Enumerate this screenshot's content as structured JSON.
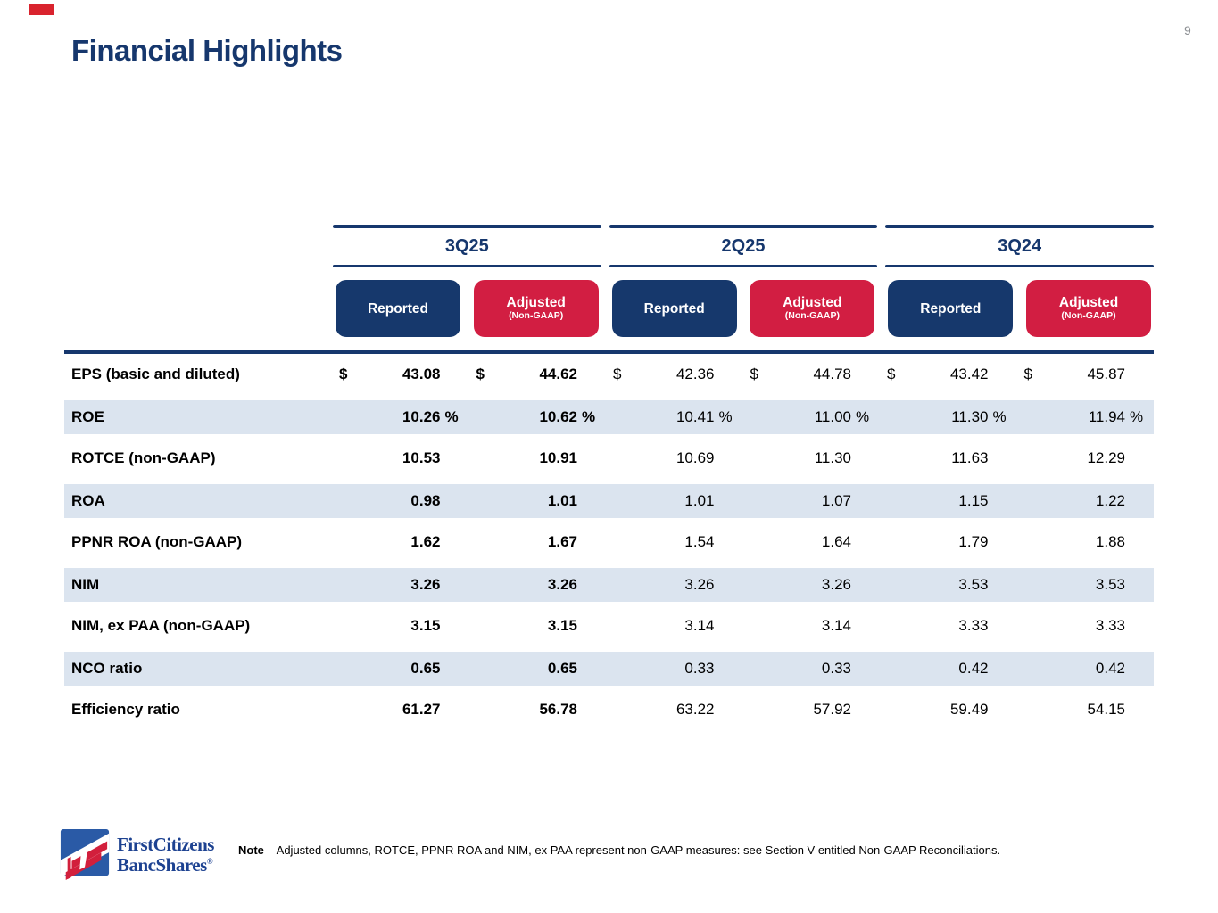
{
  "page": {
    "number": "9"
  },
  "title": "Financial Highlights",
  "colors": {
    "navy": "#16376d",
    "badge_navy": "#16386c",
    "badge_red": "#d21e42",
    "row_shade": "#dbe4ef",
    "corner_red": "#d9232e",
    "logo_blue": "#2a5aa6",
    "logo_red": "#d21f3c",
    "logo_text_blue": "#1d4291"
  },
  "header": {
    "groups": [
      {
        "label": "3Q25"
      },
      {
        "label": "2Q25"
      },
      {
        "label": "3Q24"
      }
    ],
    "badges": {
      "reported": "Reported",
      "adjusted": "Adjusted",
      "adjusted_sub": "(Non-GAAP)"
    }
  },
  "table": {
    "columns": [
      "3Q25 Reported",
      "3Q25 Adjusted (Non-GAAP)",
      "2Q25 Reported",
      "2Q25 Adjusted (Non-GAAP)",
      "3Q24 Reported",
      "3Q24 Adjusted (Non-GAAP)"
    ],
    "rows": [
      {
        "label": "EPS (basic and diluted)",
        "dollar": true,
        "percent": false,
        "shaded": false,
        "values": [
          "43.08",
          "44.62",
          "42.36",
          "44.78",
          "43.42",
          "45.87"
        ]
      },
      {
        "label": "ROE",
        "dollar": false,
        "percent": true,
        "shaded": true,
        "values": [
          "10.26",
          "10.62",
          "10.41",
          "11.00",
          "11.30",
          "11.94"
        ]
      },
      {
        "label": "ROTCE (non-GAAP)",
        "dollar": false,
        "percent": false,
        "shaded": false,
        "values": [
          "10.53",
          "10.91",
          "10.69",
          "11.30",
          "11.63",
          "12.29"
        ]
      },
      {
        "label": "ROA",
        "dollar": false,
        "percent": false,
        "shaded": true,
        "values": [
          "0.98",
          "1.01",
          "1.01",
          "1.07",
          "1.15",
          "1.22"
        ]
      },
      {
        "label": "PPNR ROA (non-GAAP)",
        "dollar": false,
        "percent": false,
        "shaded": false,
        "values": [
          "1.62",
          "1.67",
          "1.54",
          "1.64",
          "1.79",
          "1.88"
        ]
      },
      {
        "label": "NIM",
        "dollar": false,
        "percent": false,
        "shaded": true,
        "values": [
          "3.26",
          "3.26",
          "3.26",
          "3.26",
          "3.53",
          "3.53"
        ]
      },
      {
        "label": "NIM, ex PAA (non-GAAP)",
        "dollar": false,
        "percent": false,
        "shaded": false,
        "values": [
          "3.15",
          "3.15",
          "3.14",
          "3.14",
          "3.33",
          "3.33"
        ]
      },
      {
        "label": "NCO ratio",
        "dollar": false,
        "percent": false,
        "shaded": true,
        "values": [
          "0.65",
          "0.65",
          "0.33",
          "0.33",
          "0.42",
          "0.42"
        ]
      },
      {
        "label": "Efficiency ratio",
        "dollar": false,
        "percent": false,
        "shaded": false,
        "values": [
          "61.27",
          "56.78",
          "63.22",
          "57.92",
          "59.49",
          "54.15"
        ]
      }
    ]
  },
  "footer": {
    "logo_line1": "FirstCitizens",
    "logo_line2": "BancShares",
    "logo_reg": "®",
    "note_label": "Note",
    "note_dash": "–",
    "note_text": "Adjusted columns, ROTCE, PPNR ROA and NIM, ex PAA represent non-GAAP measures: see Section V entitled Non-GAAP Reconciliations."
  }
}
